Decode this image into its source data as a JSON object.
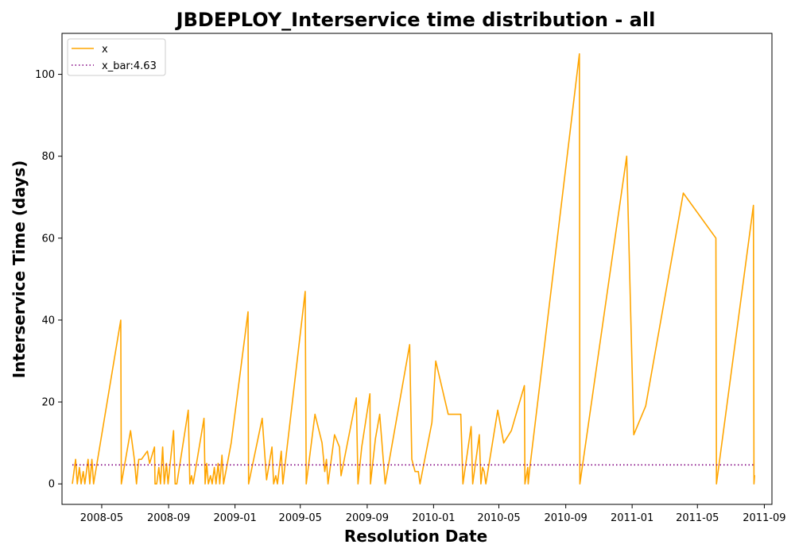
{
  "chart_data": {
    "type": "line",
    "title": "JBDEPLOY_Interservice time distribution - all",
    "xlabel": "Resolution Date",
    "ylabel": "Interservice Time (days)",
    "x_ticks": [
      "2008-05",
      "2008-09",
      "2009-01",
      "2009-05",
      "2009-09",
      "2010-01",
      "2010-05",
      "2010-09",
      "2011-01",
      "2011-05",
      "2011-09"
    ],
    "y_ticks": [
      "0",
      "20",
      "40",
      "60",
      "80",
      "100"
    ],
    "xlim": [
      "2008-02-18",
      "2011-09-15"
    ],
    "ylim": [
      -5,
      110
    ],
    "grid": false,
    "legend_position": "upper-left",
    "series": [
      {
        "name": "x",
        "color": "#ffa500",
        "style": "solid",
        "points": [
          [
            "2008-03-08",
            0
          ],
          [
            "2008-03-14",
            6
          ],
          [
            "2008-03-17",
            0
          ],
          [
            "2008-03-21",
            4
          ],
          [
            "2008-03-24",
            0
          ],
          [
            "2008-03-28",
            3
          ],
          [
            "2008-03-31",
            0
          ],
          [
            "2008-04-06",
            6
          ],
          [
            "2008-04-09",
            0
          ],
          [
            "2008-04-13",
            6
          ],
          [
            "2008-04-16",
            0
          ],
          [
            "2008-06-05",
            40
          ],
          [
            "2008-06-06",
            0
          ],
          [
            "2008-06-23",
            13
          ],
          [
            "2008-06-30",
            6
          ],
          [
            "2008-07-04",
            0
          ],
          [
            "2008-07-08",
            6
          ],
          [
            "2008-07-13",
            6
          ],
          [
            "2008-07-24",
            8
          ],
          [
            "2008-07-28",
            5
          ],
          [
            "2008-08-06",
            9
          ],
          [
            "2008-08-07",
            0
          ],
          [
            "2008-08-10",
            0
          ],
          [
            "2008-08-14",
            4
          ],
          [
            "2008-08-17",
            0
          ],
          [
            "2008-08-21",
            9
          ],
          [
            "2008-08-24",
            0
          ],
          [
            "2008-08-28",
            5
          ],
          [
            "2008-08-31",
            0
          ],
          [
            "2008-09-10",
            13
          ],
          [
            "2008-09-13",
            0
          ],
          [
            "2008-09-16",
            0
          ],
          [
            "2008-10-07",
            18
          ],
          [
            "2008-10-10",
            0
          ],
          [
            "2008-10-13",
            2
          ],
          [
            "2008-10-16",
            0
          ],
          [
            "2008-11-05",
            16
          ],
          [
            "2008-11-07",
            0
          ],
          [
            "2008-11-10",
            5
          ],
          [
            "2008-11-13",
            0
          ],
          [
            "2008-11-17",
            2
          ],
          [
            "2008-11-20",
            0
          ],
          [
            "2008-11-24",
            4
          ],
          [
            "2008-11-27",
            0
          ],
          [
            "2008-12-01",
            5
          ],
          [
            "2008-12-04",
            0
          ],
          [
            "2008-12-08",
            7
          ],
          [
            "2008-12-11",
            0
          ],
          [
            "2008-12-25",
            10
          ],
          [
            "2009-01-25",
            42
          ],
          [
            "2009-01-26",
            0
          ],
          [
            "2009-02-20",
            16
          ],
          [
            "2009-02-28",
            1
          ],
          [
            "2009-03-10",
            9
          ],
          [
            "2009-03-13",
            0
          ],
          [
            "2009-03-17",
            2
          ],
          [
            "2009-03-20",
            0
          ],
          [
            "2009-03-27",
            8
          ],
          [
            "2009-03-30",
            0
          ],
          [
            "2009-05-10",
            47
          ],
          [
            "2009-05-12",
            0
          ],
          [
            "2009-05-28",
            17
          ],
          [
            "2009-06-10",
            10
          ],
          [
            "2009-06-15",
            3
          ],
          [
            "2009-06-18",
            6
          ],
          [
            "2009-06-21",
            0
          ],
          [
            "2009-06-24",
            3
          ],
          [
            "2009-07-03",
            12
          ],
          [
            "2009-07-12",
            9
          ],
          [
            "2009-07-15",
            2
          ],
          [
            "2009-08-12",
            21
          ],
          [
            "2009-08-15",
            0
          ],
          [
            "2009-08-22",
            9
          ],
          [
            "2009-09-06",
            22
          ],
          [
            "2009-09-07",
            0
          ],
          [
            "2009-09-16",
            11
          ],
          [
            "2009-09-24",
            17
          ],
          [
            "2009-10-04",
            0
          ],
          [
            "2009-11-18",
            34
          ],
          [
            "2009-11-22",
            6
          ],
          [
            "2009-11-28",
            3
          ],
          [
            "2009-12-04",
            3
          ],
          [
            "2009-12-07",
            0
          ],
          [
            "2009-12-29",
            15
          ],
          [
            "2010-01-05",
            30
          ],
          [
            "2010-01-28",
            17
          ],
          [
            "2010-02-20",
            17
          ],
          [
            "2010-02-24",
            0
          ],
          [
            "2010-03-11",
            14
          ],
          [
            "2010-03-14",
            0
          ],
          [
            "2010-03-26",
            12
          ],
          [
            "2010-03-29",
            0
          ],
          [
            "2010-04-01",
            4
          ],
          [
            "2010-04-04",
            3
          ],
          [
            "2010-04-07",
            0
          ],
          [
            "2010-04-29",
            18
          ],
          [
            "2010-05-10",
            10
          ],
          [
            "2010-05-24",
            13
          ],
          [
            "2010-06-17",
            24
          ],
          [
            "2010-06-18",
            0
          ],
          [
            "2010-06-23",
            4
          ],
          [
            "2010-06-24",
            0
          ],
          [
            "2010-06-27",
            4
          ],
          [
            "2010-09-26",
            105
          ],
          [
            "2010-09-27",
            0
          ],
          [
            "2010-12-22",
            80
          ],
          [
            "2011-01-04",
            12
          ],
          [
            "2011-01-26",
            19
          ],
          [
            "2011-04-05",
            71
          ],
          [
            "2011-06-04",
            60
          ],
          [
            "2011-06-05",
            0
          ],
          [
            "2011-08-12",
            68
          ],
          [
            "2011-08-13",
            0
          ],
          [
            "2011-08-14",
            2
          ],
          [
            "2011-08-15",
            2
          ]
        ]
      },
      {
        "name": "x_bar:4.63",
        "color": "#800080",
        "style": "dotted",
        "points": [
          [
            "2008-03-08",
            4.63
          ],
          [
            "2011-08-15",
            4.63
          ]
        ]
      }
    ]
  }
}
